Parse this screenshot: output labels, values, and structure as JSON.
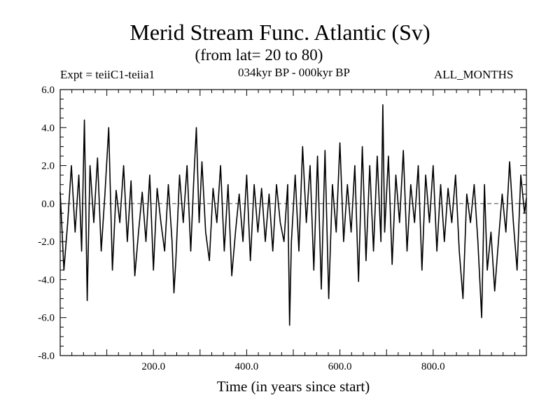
{
  "chart_data": {
    "type": "line",
    "title": "Merid Stream Func. Atlantic (Sv)",
    "subtitle": "(from lat= 20 to 80)",
    "header_left": "Expt = teiiC1-teiia1",
    "header_center": "034kyr BP - 000kyr BP",
    "header_right": "ALL_MONTHS",
    "xlabel": "Time (in years since start)",
    "ylabel": "",
    "xlim": [
      0,
      1000
    ],
    "ylim": [
      -8.0,
      6.0
    ],
    "xticks": [
      200,
      400,
      600,
      800
    ],
    "xtick_labels": [
      "200.0",
      "400.0",
      "600.0",
      "800.0"
    ],
    "yticks": [
      6,
      4,
      2,
      0,
      -2,
      -4,
      -6,
      -8
    ],
    "ytick_labels": [
      "6.0",
      "4.0",
      "2.0",
      "0.0",
      "-2.0",
      "-4.0",
      "-6.0",
      "-8.0"
    ],
    "zero_line": "dashed",
    "grid": false,
    "series": [
      {
        "x": [
          0,
          8,
          16,
          24,
          32,
          40,
          46,
          52,
          58,
          64,
          72,
          80,
          88,
          96,
          104,
          112,
          120,
          128,
          136,
          144,
          152,
          160,
          168,
          176,
          184,
          192,
          200,
          208,
          216,
          224,
          232,
          240,
          244,
          248,
          256,
          264,
          272,
          280,
          286,
          292,
          298,
          304,
          312,
          320,
          328,
          336,
          344,
          352,
          360,
          368,
          376,
          384,
          392,
          400,
          408,
          416,
          424,
          432,
          440,
          448,
          456,
          464,
          472,
          480,
          488,
          492,
          496,
          504,
          512,
          520,
          528,
          536,
          544,
          552,
          560,
          568,
          576,
          584,
          592,
          600,
          608,
          616,
          624,
          632,
          640,
          648,
          656,
          664,
          672,
          680,
          688,
          692,
          696,
          704,
          712,
          720,
          728,
          736,
          744,
          752,
          760,
          768,
          776,
          784,
          792,
          800,
          808,
          816,
          824,
          832,
          840,
          848,
          856,
          864,
          872,
          880,
          888,
          896,
          904,
          910,
          916,
          924,
          932,
          940,
          948,
          956,
          964,
          972,
          980,
          988,
          996,
          1000
        ],
        "y": [
          0.6,
          -3.5,
          -1.0,
          2.0,
          -1.5,
          1.5,
          -2.5,
          4.4,
          -5.1,
          2.0,
          -1.0,
          2.4,
          -2.5,
          0.5,
          4.0,
          -3.5,
          0.7,
          -1.0,
          2.0,
          -2.0,
          1.2,
          -3.8,
          -1.5,
          0.6,
          -2.0,
          1.5,
          -3.5,
          0.8,
          -1.0,
          -2.5,
          1.0,
          -2.0,
          -4.7,
          -3.0,
          1.5,
          -1.0,
          2.0,
          -2.5,
          1.0,
          4.0,
          -1.0,
          2.2,
          -1.5,
          -3.0,
          0.8,
          -1.0,
          2.0,
          -2.5,
          1.0,
          -3.8,
          -1.5,
          0.5,
          -2.0,
          1.5,
          -3.0,
          1.0,
          -1.5,
          0.8,
          -2.0,
          0.5,
          -2.5,
          1.0,
          -1.0,
          -2.0,
          1.0,
          -6.4,
          -2.0,
          1.5,
          -2.5,
          3.0,
          -1.0,
          2.0,
          -3.5,
          2.5,
          -4.5,
          2.8,
          -5.0,
          1.0,
          -1.5,
          3.2,
          -2.0,
          1.0,
          -1.5,
          2.0,
          -4.1,
          3.0,
          -3.0,
          2.0,
          -2.5,
          2.5,
          -2.0,
          5.2,
          -1.5,
          2.5,
          -3.2,
          1.5,
          -1.0,
          2.8,
          -2.5,
          1.0,
          -1.0,
          2.0,
          -3.5,
          1.5,
          -1.0,
          2.0,
          -2.5,
          1.0,
          -2.0,
          0.8,
          -1.0,
          1.5,
          -2.5,
          -5.0,
          0.5,
          -1.0,
          1.0,
          -2.0,
          -6.0,
          1.0,
          -3.5,
          -1.5,
          -4.6,
          -2.0,
          0.5,
          -1.5,
          2.2,
          -1.0,
          -3.5,
          1.5,
          -0.5,
          0.3
        ]
      }
    ]
  }
}
